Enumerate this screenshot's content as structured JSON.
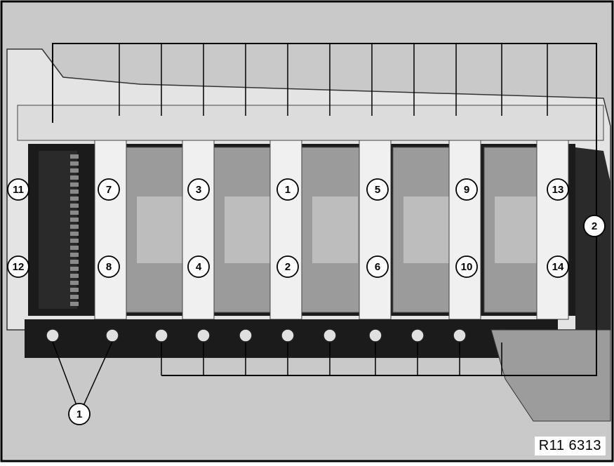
{
  "diagram": {
    "reference_code": "R11 6313",
    "upper_bolt_labels": [
      "11",
      "7",
      "3",
      "1",
      "5",
      "9",
      "13"
    ],
    "lower_bolt_labels": [
      "12",
      "8",
      "4",
      "2",
      "6",
      "10",
      "14"
    ],
    "side_label": "2",
    "bottom_label": "1",
    "colors": {
      "background": "#c8c8c8",
      "block": "#e6e6e6",
      "dark": "#1a1a1a",
      "crank": "#9a9a9a",
      "line": "#000000"
    }
  }
}
